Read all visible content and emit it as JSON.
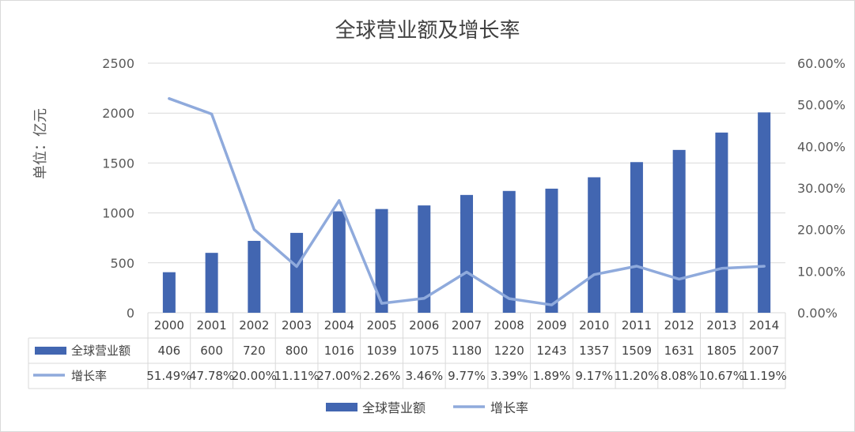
{
  "chart_data": {
    "type": "bar",
    "title": "全球营业额及增长率",
    "ylabel": "单位：亿元",
    "categories": [
      "2000",
      "2001",
      "2002",
      "2003",
      "2004",
      "2005",
      "2006",
      "2007",
      "2008",
      "2009",
      "2010",
      "2011",
      "2012",
      "2013",
      "2014"
    ],
    "series": [
      {
        "name": "全球营业额",
        "type": "bar",
        "axis": "left",
        "color": "#4266b1",
        "values": [
          406,
          600,
          720,
          800,
          1016,
          1039,
          1075,
          1180,
          1220,
          1243,
          1357,
          1509,
          1631,
          1805,
          2007
        ],
        "table_labels": [
          "406",
          "600",
          "720",
          "800",
          "1016",
          "1039",
          "1075",
          "1180",
          "1220",
          "1243",
          "1357",
          "1509",
          "1631",
          "1805",
          "2007"
        ]
      },
      {
        "name": "增长率",
        "type": "line",
        "axis": "right",
        "color": "#8faadc",
        "values": [
          51.49,
          47.78,
          20.0,
          11.11,
          27.0,
          2.26,
          3.46,
          9.77,
          3.39,
          1.89,
          9.17,
          11.2,
          8.08,
          10.67,
          11.19
        ],
        "table_labels": [
          "51.49%",
          "47.78%",
          "20.00%",
          "11.11%",
          "27.00%",
          "2.26%",
          "3.46%",
          "9.77%",
          "3.39%",
          "1.89%",
          "9.17%",
          "11.20%",
          "8.08%",
          "10.67%",
          "11.19%"
        ]
      }
    ],
    "ylim": [
      0,
      2500
    ],
    "yticks": [
      "0",
      "500",
      "1000",
      "1500",
      "2000",
      "2500"
    ],
    "y2lim": [
      0,
      60
    ],
    "y2ticks": [
      "0.00%",
      "10.00%",
      "20.00%",
      "30.00%",
      "40.00%",
      "50.00%",
      "60.00%"
    ],
    "grid": true,
    "legend_position": "bottom",
    "data_table": true
  }
}
